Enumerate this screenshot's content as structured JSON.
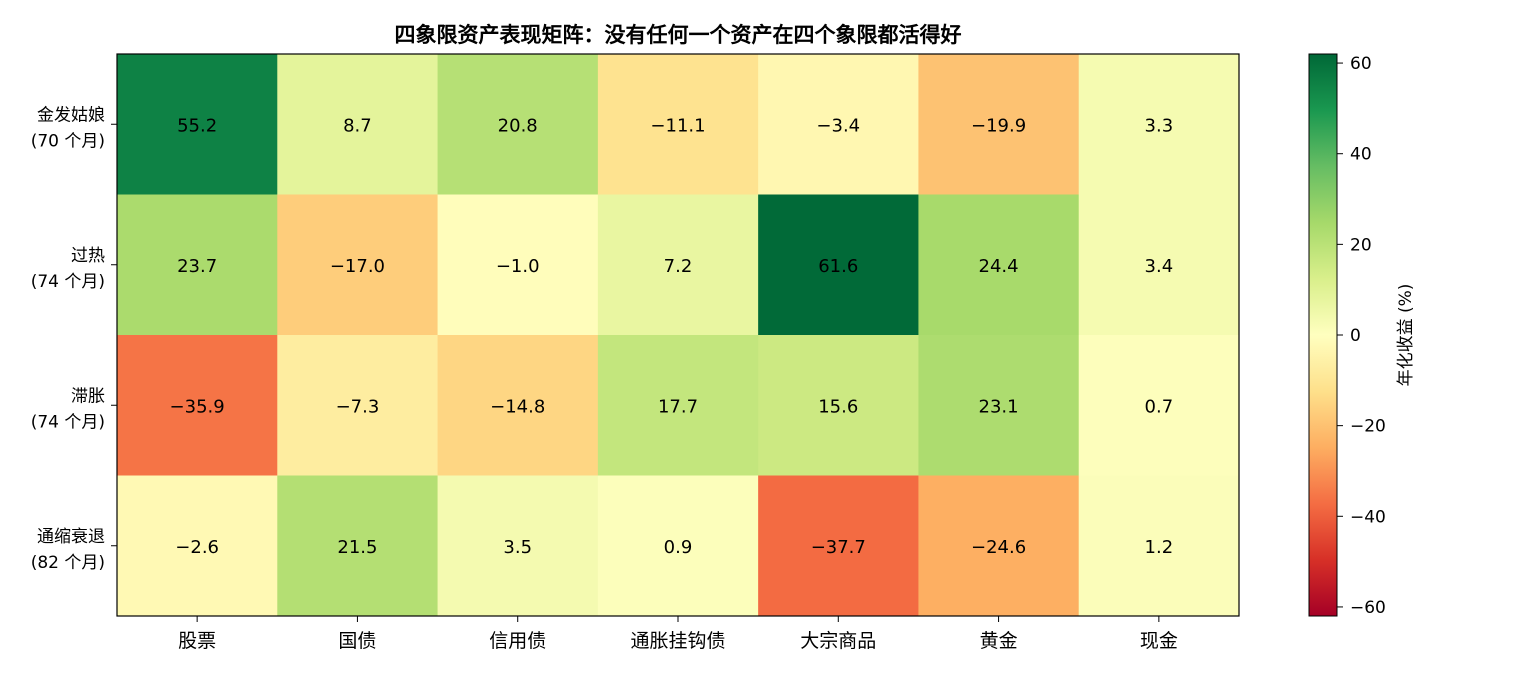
{
  "chart_data": {
    "type": "heatmap",
    "title": "四象限资产表现矩阵：没有任何一个资产在四个象限都活得好",
    "xlabel": "",
    "ylabel": "",
    "x_categories": [
      "股票",
      "国债",
      "信用债",
      "通胀挂钩债",
      "大宗商品",
      "黄金",
      "现金"
    ],
    "y_categories": [
      {
        "name": "金发姑娘",
        "months": "(70 个月)"
      },
      {
        "name": "过热",
        "months": "(74 个月)"
      },
      {
        "name": "滞胀",
        "months": "(74 个月)"
      },
      {
        "name": "通缩衰退",
        "months": "(82 个月)"
      }
    ],
    "values": [
      [
        55.2,
        8.7,
        20.8,
        -11.1,
        -3.4,
        -19.9,
        3.3
      ],
      [
        23.7,
        -17.0,
        -1.0,
        7.2,
        61.6,
        24.4,
        3.4
      ],
      [
        -35.9,
        -7.3,
        -14.8,
        17.7,
        15.6,
        23.1,
        0.7
      ],
      [
        -2.6,
        21.5,
        3.5,
        0.9,
        -37.7,
        -24.6,
        1.2
      ]
    ],
    "colorbar": {
      "label": "年化收益 (%)",
      "range": [
        -62,
        62
      ],
      "ticks": [
        60,
        40,
        20,
        0,
        -20,
        -40,
        -60
      ],
      "colormap": "RdYlGn"
    },
    "grid": false,
    "legend": "none"
  }
}
